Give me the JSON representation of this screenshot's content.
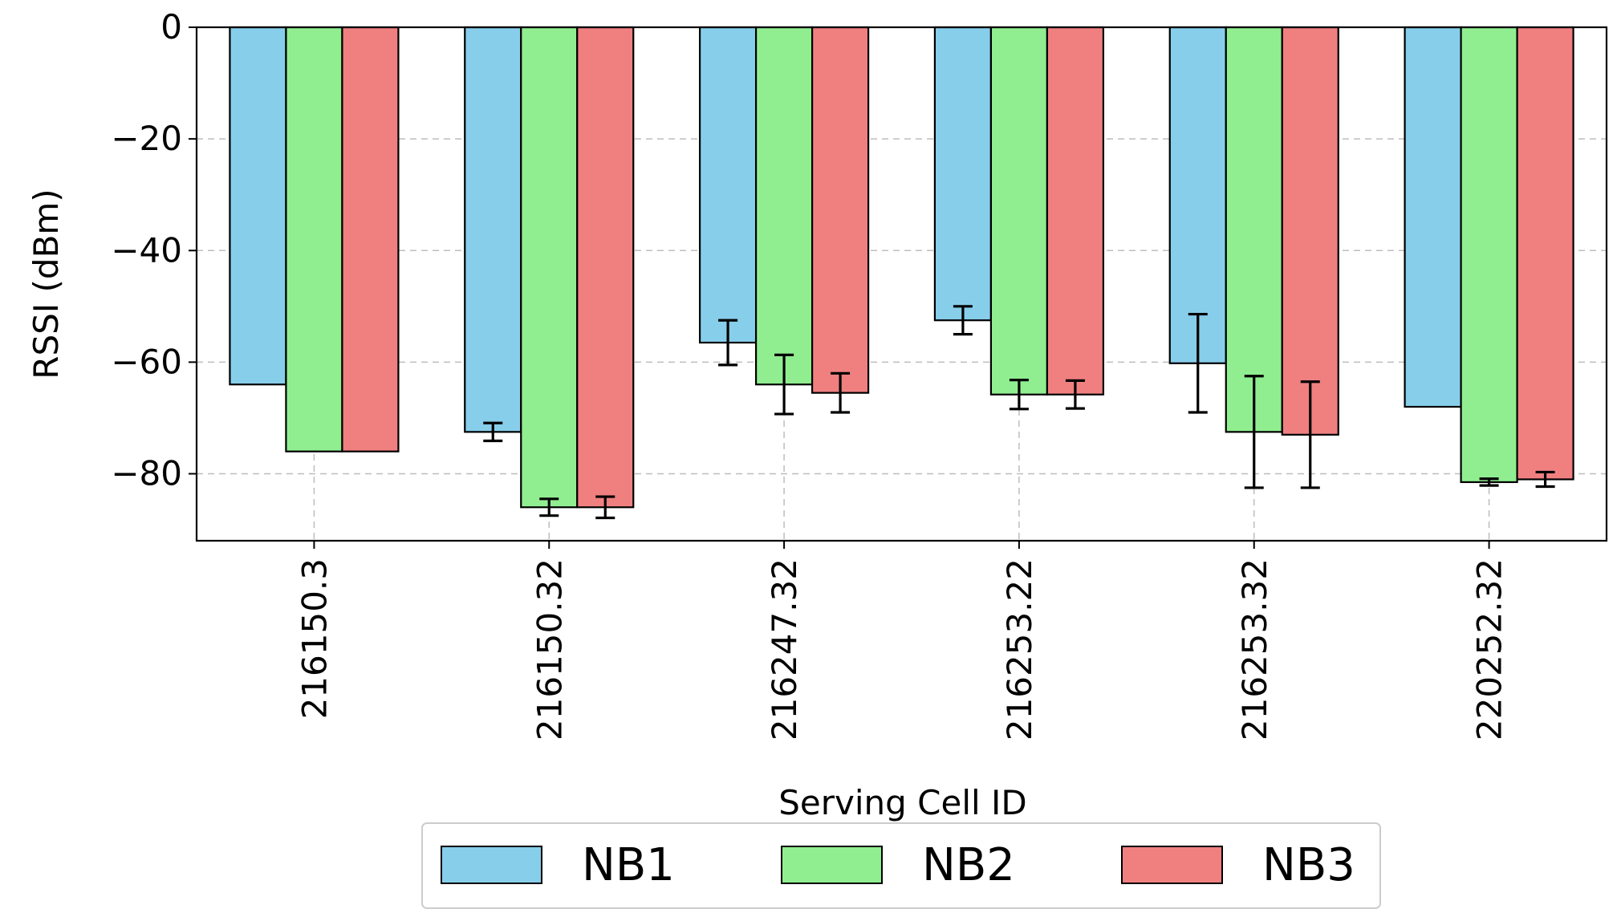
{
  "chart_data": {
    "type": "bar",
    "title": "",
    "xlabel": "Serving Cell ID",
    "ylabel": "RSSI (dBm)",
    "ylim": [
      -92,
      0
    ],
    "yticks": [
      0,
      -20,
      -40,
      -60,
      -80
    ],
    "ytick_labels": [
      "0",
      "−20",
      "−40",
      "−60",
      "−80"
    ],
    "grid": true,
    "legend_position": "bottom-center",
    "categories": [
      "216150.3",
      "216150.32",
      "216247.32",
      "216253.22",
      "216253.32",
      "220252.32"
    ],
    "series": [
      {
        "name": "NB1",
        "color": "#87CEEB",
        "values": [
          -64,
          -72.5,
          -56.5,
          -52.5,
          -60.2,
          -68
        ],
        "errors": [
          null,
          1.6,
          4.0,
          2.5,
          8.8,
          null
        ]
      },
      {
        "name": "NB2",
        "color": "#90EE90",
        "values": [
          -76,
          -86,
          -64,
          -65.8,
          -72.5,
          -81.5
        ],
        "errors": [
          null,
          1.5,
          5.3,
          2.6,
          10.0,
          0.6
        ]
      },
      {
        "name": "NB3",
        "color": "#F08080",
        "values": [
          -76,
          -86,
          -65.5,
          -65.8,
          -73,
          -81
        ],
        "errors": [
          null,
          1.9,
          3.5,
          2.5,
          9.5,
          1.3
        ]
      }
    ]
  }
}
